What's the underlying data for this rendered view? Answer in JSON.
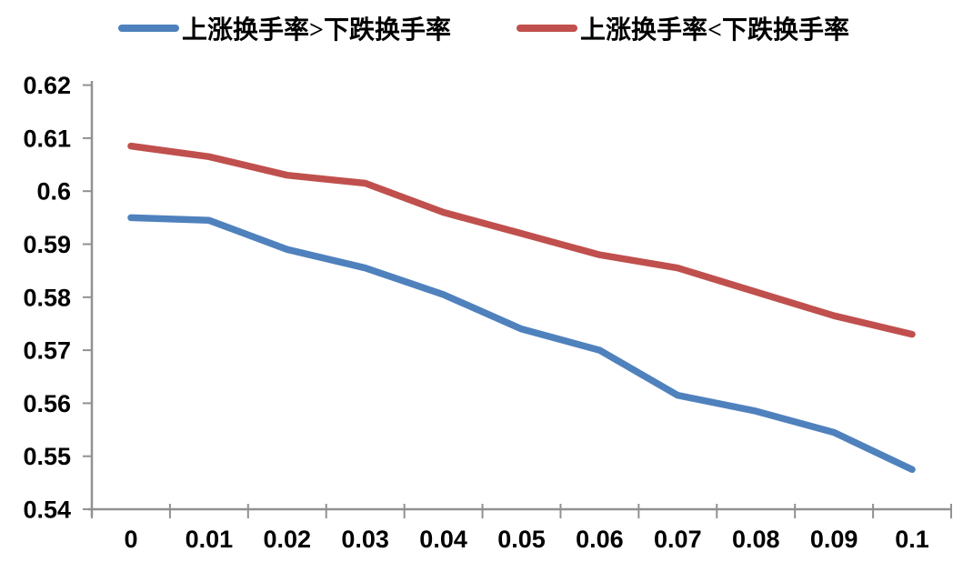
{
  "chart_data": {
    "type": "line",
    "title": "",
    "xlabel": "",
    "ylabel": "",
    "categories": [
      "0",
      "0.01",
      "0.02",
      "0.03",
      "0.04",
      "0.05",
      "0.06",
      "0.07",
      "0.08",
      "0.09",
      "0.1"
    ],
    "series": [
      {
        "name": "上涨换手率>下跌换手率",
        "color": "#4F81BD",
        "values": [
          0.595,
          0.5945,
          0.589,
          0.5855,
          0.5805,
          0.574,
          0.57,
          0.5615,
          0.5585,
          0.5545,
          0.5475
        ]
      },
      {
        "name": "上涨换手率<下跌换手率",
        "color": "#C0504D",
        "values": [
          0.6085,
          0.6065,
          0.603,
          0.6015,
          0.596,
          0.592,
          0.588,
          0.5855,
          0.581,
          0.5765,
          0.573
        ]
      }
    ],
    "ylim": [
      0.54,
      0.62
    ],
    "y_ticks": [
      0.54,
      0.55,
      0.56,
      0.57,
      0.58,
      0.59,
      0.6,
      0.61,
      0.62
    ],
    "y_tick_labels": [
      "0.54",
      "0.55",
      "0.56",
      "0.57",
      "0.58",
      "0.59",
      "0.6",
      "0.61",
      "0.62"
    ],
    "legend_position": "top",
    "grid": false,
    "axis_color": "#919191",
    "label_color": "#000000"
  }
}
